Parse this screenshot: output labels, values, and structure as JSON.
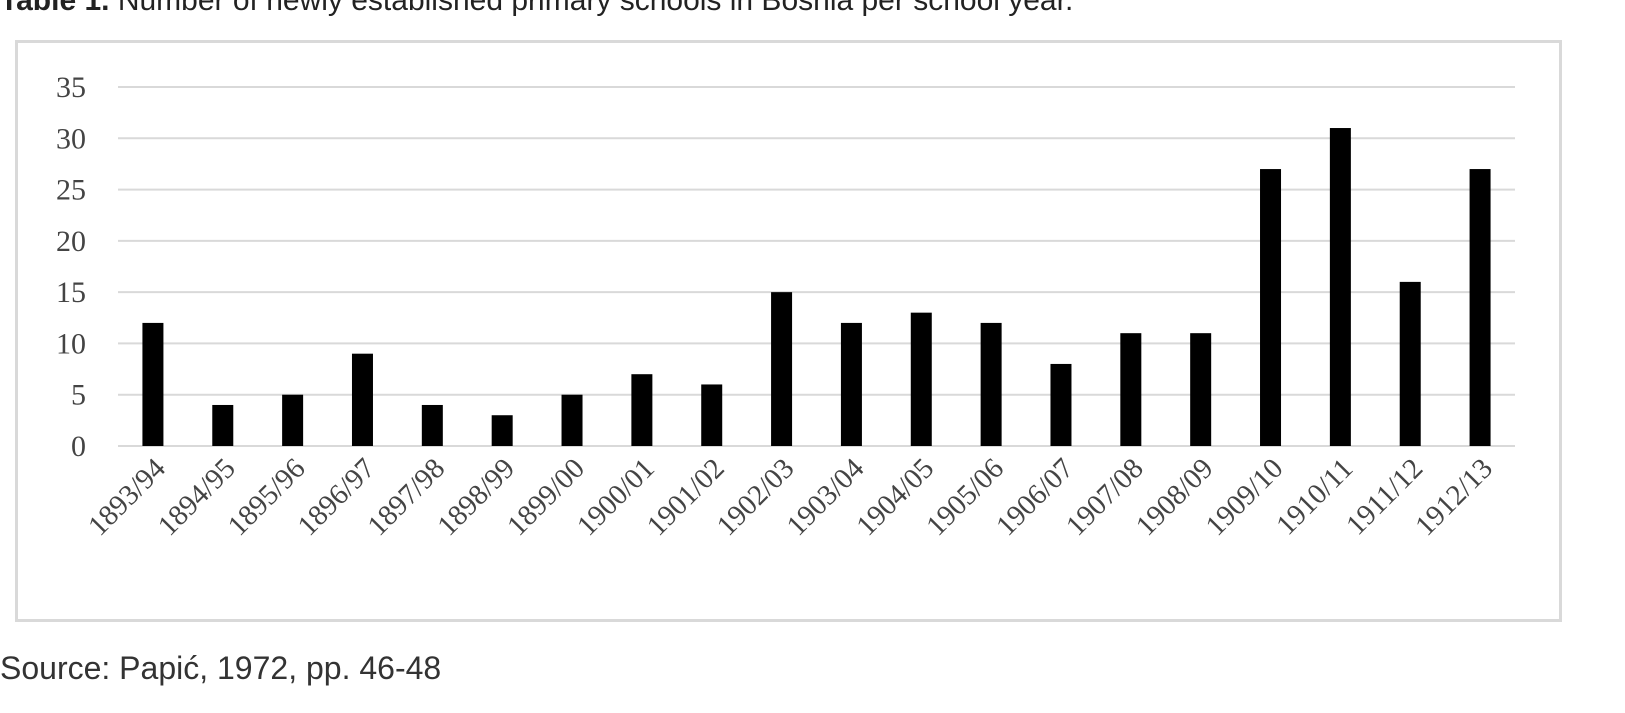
{
  "caption": {
    "label": "Table 1.",
    "text": "Number of newly established primary schools in Bosnia per school year."
  },
  "source": "Source: Papić, 1972, pp. 46-48",
  "colors": {
    "bar": "#000000",
    "grid": "#d9d9d9",
    "frame": "#d9d9d9",
    "text": "#444444"
  },
  "chart_data": {
    "type": "bar",
    "title": "",
    "xlabel": "",
    "ylabel": "",
    "ylim": [
      0,
      35
    ],
    "yticks": [
      0,
      5,
      10,
      15,
      20,
      25,
      30,
      35
    ],
    "grid": true,
    "legend": "none",
    "categories": [
      "1893/94",
      "1894/95",
      "1895/96",
      "1896/97",
      "1897/98",
      "1898/99",
      "1899/00",
      "1900/01",
      "1901/02",
      "1902/03",
      "1903/04",
      "1904/05",
      "1905/06",
      "1906/07",
      "1907/08",
      "1908/09",
      "1909/10",
      "1910/11",
      "1911/12",
      "1912/13"
    ],
    "values": [
      12,
      4,
      5,
      9,
      4,
      3,
      5,
      7,
      6,
      15,
      12,
      13,
      12,
      8,
      11,
      11,
      27,
      31,
      16,
      27
    ]
  }
}
